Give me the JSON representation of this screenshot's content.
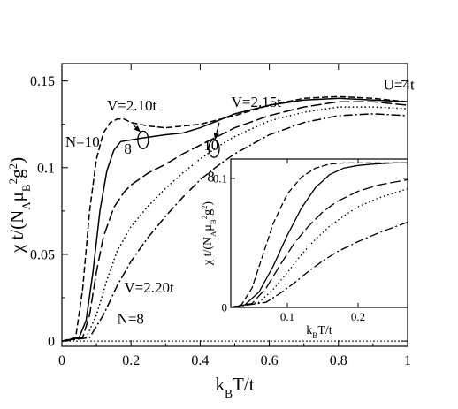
{
  "chart_data": [
    {
      "type": "line",
      "panel": "main",
      "xlabel_main": "k",
      "xlabel_sub": "B",
      "xlabel_rest": "T/t",
      "ylabel": "χ t/(N_A μ_B^2 g^2)",
      "xlim": [
        0,
        1
      ],
      "ylim": [
        -0.003,
        0.16
      ],
      "x_ticks": [
        "0",
        "0.2",
        "0.4",
        "0.6",
        "0.8",
        "1"
      ],
      "x_tick_values": [
        0,
        0.2,
        0.4,
        0.6,
        0.8,
        1.0
      ],
      "y_ticks": [
        "0",
        "0.05",
        "0.1",
        "0.15"
      ],
      "y_tick_values": [
        0,
        0.05,
        0.1,
        0.15
      ],
      "reference_line_y": 0,
      "series": [
        {
          "style": "dashed",
          "x": [
            0,
            0.04,
            0.06,
            0.08,
            0.1,
            0.12,
            0.14,
            0.16,
            0.18,
            0.2,
            0.25,
            0.3,
            0.4,
            0.5,
            0.6,
            0.7,
            0.8,
            0.9,
            1.0
          ],
          "y": [
            0,
            0.002,
            0.03,
            0.075,
            0.105,
            0.12,
            0.126,
            0.128,
            0.128,
            0.126,
            0.124,
            0.123,
            0.125,
            0.13,
            0.136,
            0.14,
            0.141,
            0.14,
            0.138
          ]
        },
        {
          "style": "solid",
          "x": [
            0,
            0.05,
            0.07,
            0.09,
            0.11,
            0.13,
            0.15,
            0.17,
            0.2,
            0.23,
            0.3,
            0.35,
            0.4,
            0.45,
            0.5,
            0.6,
            0.7,
            0.8,
            0.9,
            1.0
          ],
          "y": [
            0,
            0.002,
            0.012,
            0.04,
            0.075,
            0.098,
            0.11,
            0.115,
            0.116,
            0.117,
            0.119,
            0.12,
            0.123,
            0.127,
            0.131,
            0.136,
            0.139,
            0.14,
            0.139,
            0.138
          ]
        },
        {
          "style": "longdash",
          "x": [
            0,
            0.06,
            0.08,
            0.1,
            0.12,
            0.15,
            0.18,
            0.2,
            0.25,
            0.3,
            0.35,
            0.4,
            0.45,
            0.5,
            0.6,
            0.7,
            0.8,
            0.9,
            1.0
          ],
          "y": [
            0,
            0.002,
            0.015,
            0.04,
            0.06,
            0.077,
            0.086,
            0.09,
            0.097,
            0.102,
            0.108,
            0.113,
            0.118,
            0.123,
            0.13,
            0.135,
            0.138,
            0.138,
            0.136
          ]
        },
        {
          "style": "dotted",
          "x": [
            0,
            0.07,
            0.1,
            0.13,
            0.16,
            0.2,
            0.25,
            0.3,
            0.35,
            0.4,
            0.45,
            0.5,
            0.6,
            0.7,
            0.8,
            0.9,
            1.0
          ],
          "y": [
            0,
            0.002,
            0.015,
            0.035,
            0.052,
            0.066,
            0.078,
            0.088,
            0.097,
            0.105,
            0.112,
            0.118,
            0.127,
            0.132,
            0.135,
            0.135,
            0.134
          ]
        },
        {
          "style": "dashdot",
          "x": [
            0,
            0.08,
            0.12,
            0.16,
            0.2,
            0.25,
            0.3,
            0.35,
            0.4,
            0.45,
            0.5,
            0.6,
            0.7,
            0.8,
            0.9,
            1.0
          ],
          "y": [
            0,
            0.002,
            0.015,
            0.032,
            0.046,
            0.06,
            0.072,
            0.083,
            0.093,
            0.101,
            0.108,
            0.119,
            0.126,
            0.13,
            0.131,
            0.13
          ]
        }
      ],
      "annotations": [
        {
          "text": "U=4t",
          "x": 0.93,
          "y": 0.145
        },
        {
          "text": "V=2.10t",
          "x": 0.13,
          "y": 0.133
        },
        {
          "text": "V=2.15t",
          "x": 0.49,
          "y": 0.135
        },
        {
          "text": "N=10",
          "x": 0.01,
          "y": 0.112
        },
        {
          "text": "8",
          "x": 0.18,
          "y": 0.108
        },
        {
          "text": "10",
          "x": 0.41,
          "y": 0.11
        },
        {
          "text": "8",
          "x": 0.42,
          "y": 0.092
        },
        {
          "text": "V=2.20t",
          "x": 0.18,
          "y": 0.028
        },
        {
          "text": "N=8",
          "x": 0.16,
          "y": 0.01
        }
      ],
      "markers": [
        {
          "shape": "ellipse",
          "x": 0.235,
          "y": 0.116
        },
        {
          "shape": "ellipse",
          "x": 0.44,
          "y": 0.111
        }
      ]
    },
    {
      "type": "line",
      "panel": "inset",
      "xlabel_main": "k",
      "xlabel_sub": "B",
      "xlabel_rest": "T/t",
      "ylabel": "χ t/(N_A μ_B^2 g^2)",
      "xlim": [
        0.02,
        0.27
      ],
      "ylim": [
        0,
        0.115
      ],
      "x_ticks": [
        "0.1",
        "0.2"
      ],
      "x_tick_values": [
        0.1,
        0.2
      ],
      "y_ticks": [
        "0",
        "0.1"
      ],
      "y_tick_values": [
        0,
        0.1
      ],
      "series": [
        {
          "style": "dashed",
          "x": [
            0.02,
            0.035,
            0.05,
            0.065,
            0.08,
            0.1,
            0.12,
            0.14,
            0.16,
            0.18,
            0.2,
            0.22,
            0.25,
            0.27
          ],
          "y": [
            0,
            0.002,
            0.015,
            0.04,
            0.065,
            0.088,
            0.101,
            0.108,
            0.111,
            0.112,
            0.112,
            0.112,
            0.112,
            0.112
          ]
        },
        {
          "style": "solid",
          "x": [
            0.02,
            0.04,
            0.06,
            0.08,
            0.1,
            0.12,
            0.14,
            0.16,
            0.18,
            0.2,
            0.22,
            0.25,
            0.27
          ],
          "y": [
            0,
            0.002,
            0.012,
            0.032,
            0.056,
            0.077,
            0.093,
            0.103,
            0.108,
            0.11,
            0.111,
            0.112,
            0.112
          ]
        },
        {
          "style": "longdash",
          "x": [
            0.02,
            0.05,
            0.07,
            0.09,
            0.11,
            0.13,
            0.15,
            0.17,
            0.2,
            0.23,
            0.27
          ],
          "y": [
            0,
            0.003,
            0.015,
            0.033,
            0.05,
            0.063,
            0.074,
            0.082,
            0.09,
            0.095,
            0.099
          ]
        },
        {
          "style": "dotted",
          "x": [
            0.02,
            0.06,
            0.08,
            0.1,
            0.12,
            0.14,
            0.16,
            0.18,
            0.2,
            0.23,
            0.27
          ],
          "y": [
            0,
            0.004,
            0.014,
            0.027,
            0.041,
            0.053,
            0.063,
            0.071,
            0.078,
            0.085,
            0.092
          ]
        },
        {
          "style": "dashdot",
          "x": [
            0.02,
            0.07,
            0.09,
            0.11,
            0.13,
            0.15,
            0.17,
            0.2,
            0.23,
            0.27
          ],
          "y": [
            0,
            0.004,
            0.011,
            0.019,
            0.028,
            0.036,
            0.043,
            0.051,
            0.058,
            0.066
          ]
        }
      ]
    }
  ]
}
